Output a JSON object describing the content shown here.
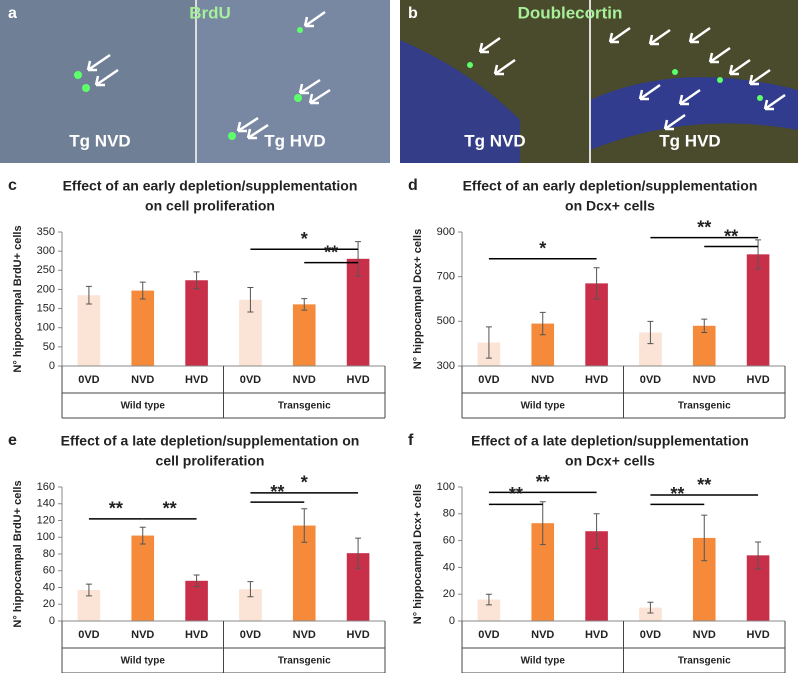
{
  "panels": [
    {
      "letter": "a",
      "title": "BrdU",
      "labels": [
        "Tg NVD",
        "Tg HVD"
      ]
    },
    {
      "letter": "b",
      "title": "Doublecortin",
      "labels": [
        "Tg NVD",
        "Tg HVD"
      ]
    }
  ],
  "chart_data": [
    {
      "type": "bar",
      "panel": "c",
      "title": [
        "Effect of an early depletion/supplementation",
        "on cell proliferation"
      ],
      "ylabel": "N° hippocampal BrdU+ cells",
      "categories": [
        "0VD",
        "NVD",
        "HVD",
        "0VD",
        "NVD",
        "HVD"
      ],
      "groups": [
        "Wild type",
        "Transgenic"
      ],
      "values": [
        185,
        197,
        224,
        173,
        161,
        280
      ],
      "errors": [
        23,
        22,
        22,
        32,
        15,
        45
      ],
      "colors": [
        "#fbe3d6",
        "#f58b3a",
        "#c8304a",
        "#fbe3d6",
        "#f58b3a",
        "#c8304a"
      ],
      "ylim": [
        0,
        350
      ],
      "yticks": [
        0,
        50,
        100,
        150,
        200,
        250,
        300,
        350
      ],
      "annotations": [
        {
          "label": "*",
          "from": 3,
          "to": 5,
          "y": 305
        },
        {
          "label": "**",
          "from": 4,
          "to": 5,
          "y": 270
        }
      ]
    },
    {
      "type": "bar",
      "panel": "d",
      "title": [
        "Effect of an early depletion/supplementation",
        "on Dcx+ cells"
      ],
      "ylabel": "N° hippocampal Dcx+ cells",
      "categories": [
        "0VD",
        "NVD",
        "HVD",
        "0VD",
        "NVD",
        "HVD"
      ],
      "groups": [
        "Wild type",
        "Transgenic"
      ],
      "values": [
        405,
        490,
        670,
        450,
        480,
        800
      ],
      "errors": [
        70,
        50,
        70,
        50,
        30,
        65
      ],
      "colors": [
        "#fbe3d6",
        "#f58b3a",
        "#c8304a",
        "#fbe3d6",
        "#f58b3a",
        "#c8304a"
      ],
      "ylim": [
        300,
        900
      ],
      "yticks": [
        300,
        500,
        700,
        900
      ],
      "annotations": [
        {
          "label": "*",
          "from": 0,
          "to": 2,
          "y": 780
        },
        {
          "label": "**",
          "from": 3,
          "to": 5,
          "y": 875
        },
        {
          "label": "**",
          "from": 4,
          "to": 5,
          "y": 835
        }
      ]
    },
    {
      "type": "bar",
      "panel": "e",
      "title": [
        "Effect of a late depletion/supplementation on",
        "cell proliferation"
      ],
      "ylabel": "N° hippocampal BrdU+ cells",
      "categories": [
        "0VD",
        "NVD",
        "HVD",
        "0VD",
        "NVD",
        "HVD"
      ],
      "groups": [
        "Wild type",
        "Transgenic"
      ],
      "values": [
        37,
        102,
        48,
        38,
        114,
        81
      ],
      "errors": [
        7,
        10,
        7,
        9,
        20,
        18
      ],
      "colors": [
        "#fbe3d6",
        "#f58b3a",
        "#c8304a",
        "#fbe3d6",
        "#f58b3a",
        "#c8304a"
      ],
      "ylim": [
        0,
        160
      ],
      "yticks": [
        0,
        20,
        40,
        60,
        80,
        100,
        120,
        140,
        160
      ],
      "annotations": [
        {
          "label": "**",
          "from": 0,
          "to": 1,
          "y": 122
        },
        {
          "label": "**",
          "from": 1,
          "to": 2,
          "y": 122
        },
        {
          "label": "*",
          "from": 3,
          "to": 5,
          "y": 153
        },
        {
          "label": "**",
          "from": 3,
          "to": 4,
          "y": 142
        }
      ]
    },
    {
      "type": "bar",
      "panel": "f",
      "title": [
        "Effect of a late depletion/supplementation",
        "on Dcx+ cells"
      ],
      "ylabel": "N° hippocampal Dcx+ cells",
      "categories": [
        "0VD",
        "NVD",
        "HVD",
        "0VD",
        "NVD",
        "HVD"
      ],
      "groups": [
        "Wild type",
        "Transgenic"
      ],
      "values": [
        16,
        73,
        67,
        10,
        62,
        49
      ],
      "errors": [
        4,
        16,
        13,
        4,
        17,
        10
      ],
      "colors": [
        "#fbe3d6",
        "#f58b3a",
        "#c8304a",
        "#fbe3d6",
        "#f58b3a",
        "#c8304a"
      ],
      "ylim": [
        0,
        100
      ],
      "yticks": [
        0,
        20,
        40,
        60,
        80,
        100
      ],
      "annotations": [
        {
          "label": "**",
          "from": 0,
          "to": 2,
          "y": 96
        },
        {
          "label": "**",
          "from": 0,
          "to": 1,
          "y": 87
        },
        {
          "label": "**",
          "from": 3,
          "to": 5,
          "y": 94
        },
        {
          "label": "**",
          "from": 3,
          "to": 4,
          "y": 87
        }
      ]
    }
  ]
}
